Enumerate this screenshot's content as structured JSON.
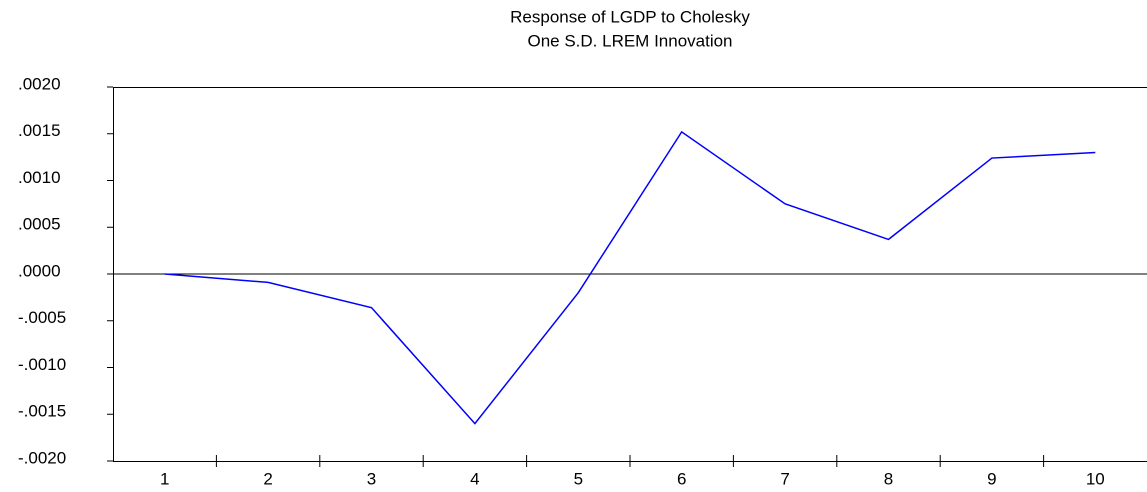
{
  "chart_data": {
    "type": "line",
    "title": [
      "Response of LGDP to Cholesky",
      "One S.D. LREM Innovation"
    ],
    "categories": [
      "1",
      "2",
      "3",
      "4",
      "5",
      "6",
      "7",
      "8",
      "9",
      "10"
    ],
    "series": [
      {
        "name": "LGDP",
        "color": "#0000ff",
        "values": [
          0,
          -9e-05,
          -0.00036,
          -0.0016,
          -0.0002,
          0.00152,
          0.00075,
          0.00037,
          0.00124,
          0.0013
        ]
      }
    ],
    "ylim": [
      -0.002,
      0.002
    ],
    "yticks": [
      {
        "value": -0.002,
        "label": "-.0020"
      },
      {
        "value": -0.0015,
        "label": "-.0015"
      },
      {
        "value": -0.001,
        "label": "-.0010"
      },
      {
        "value": -0.0005,
        "label": "-.0005"
      },
      {
        "value": 0,
        "label": ".0000"
      },
      {
        "value": 0.0005,
        "label": ".0005"
      },
      {
        "value": 0.001,
        "label": ".0010"
      },
      {
        "value": 0.0015,
        "label": ".0015"
      },
      {
        "value": 0.002,
        "label": ".0020"
      }
    ],
    "zero_line": true
  }
}
